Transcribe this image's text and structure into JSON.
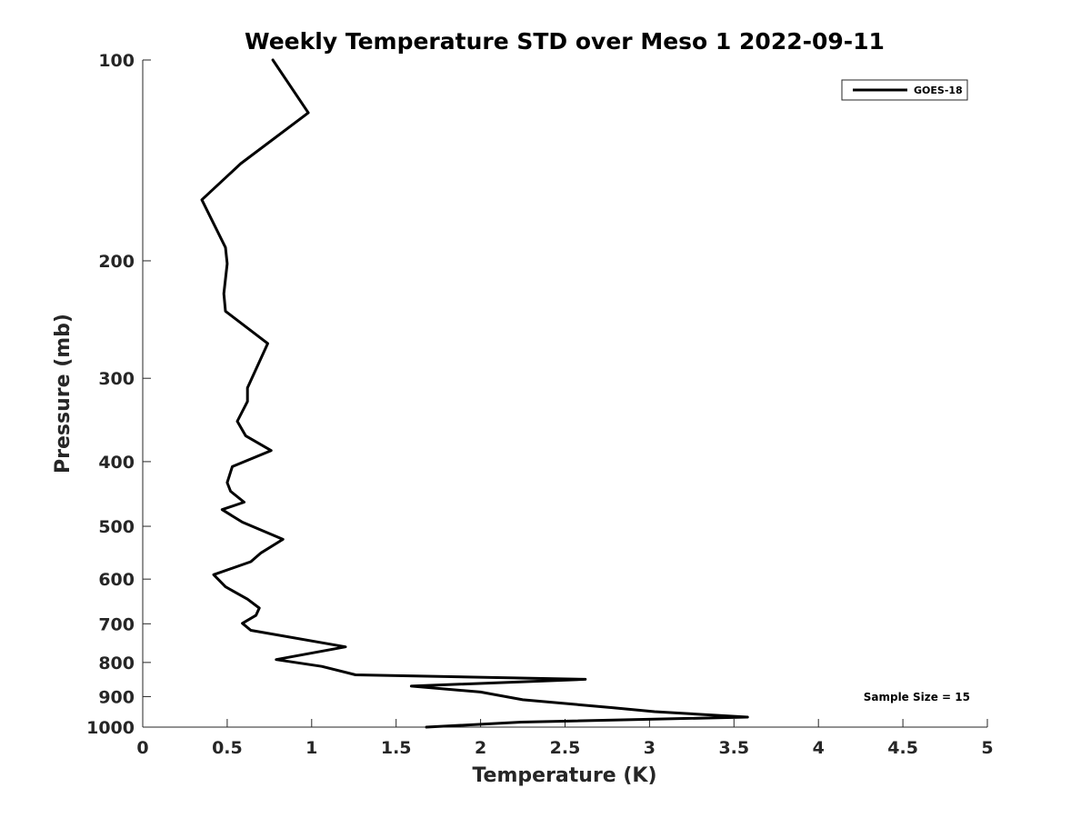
{
  "chart_data": {
    "type": "line",
    "title": "Weekly Temperature STD over Meso 1 2022-09-11",
    "xlabel": "Temperature (K)",
    "ylabel": "Pressure (mb)",
    "xlim": [
      0,
      5
    ],
    "ylim": [
      100,
      1000
    ],
    "yscale": "log",
    "y_reversed": true,
    "grid": false,
    "legend_position": "top-right",
    "x_ticks": [
      "0",
      "0.5",
      "1",
      "1.5",
      "2",
      "2.5",
      "3",
      "3.5",
      "4",
      "4.5",
      "5"
    ],
    "y_ticks": [
      "100",
      "200",
      "300",
      "400",
      "500",
      "600",
      "700",
      "800",
      "900",
      "1000"
    ],
    "annotation": "Sample Size = 15",
    "series": [
      {
        "name": "GOES-18",
        "color": "#000000",
        "x": [
          0.77,
          0.98,
          0.58,
          0.35,
          0.49,
          0.5,
          0.48,
          0.49,
          0.74,
          0.62,
          0.62,
          0.56,
          0.61,
          0.76,
          0.53,
          0.5,
          0.52,
          0.6,
          0.47,
          0.59,
          0.83,
          0.7,
          0.64,
          0.42,
          0.49,
          0.62,
          0.69,
          0.67,
          0.59,
          0.64,
          1.2,
          0.79,
          1.06,
          1.26,
          2.62,
          1.59,
          2.0,
          2.25,
          2.78,
          3.03,
          3.58,
          2.24,
          1.68
        ],
        "y": [
          100,
          120,
          143,
          162,
          191,
          202,
          224,
          238,
          266,
          310,
          325,
          348,
          366,
          385,
          407,
          430,
          443,
          460,
          472,
          493,
          523,
          548,
          565,
          591,
          616,
          643,
          663,
          680,
          699,
          716,
          758,
          792,
          811,
          835,
          848,
          868,
          886,
          910,
          935,
          948,
          966,
          983,
          1000
        ]
      }
    ]
  }
}
